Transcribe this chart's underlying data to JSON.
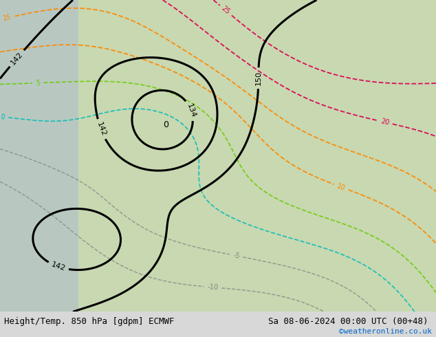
{
  "bottom_left_text": "Height/Temp. 850 hPa [gdpm] ECMWF",
  "bottom_right_text": "Sa 08-06-2024 00:00 UTC (00+48)",
  "watermark": "©weatheronline.co.uk",
  "watermark_color": "#0066cc",
  "fig_width": 6.34,
  "fig_height": 4.9,
  "dpi": 100,
  "bottom_text_color": "#000000",
  "bottom_bg_color": "#d8d8d8",
  "font_size_bottom": 9,
  "font_size_watermark": 8,
  "map_bg_color": "#c8d8b0",
  "contour_black_color": "#000000",
  "contour_cyan_color": "#00bbbb",
  "contour_green_color": "#66cc00",
  "contour_orange_color": "#ff8800",
  "contour_red_color": "#dd0055",
  "contour_gray_color": "#888888",
  "label_fontsize": 7,
  "sea_color": "#b8c8c0",
  "gray_area_color": "#c0c0c0"
}
